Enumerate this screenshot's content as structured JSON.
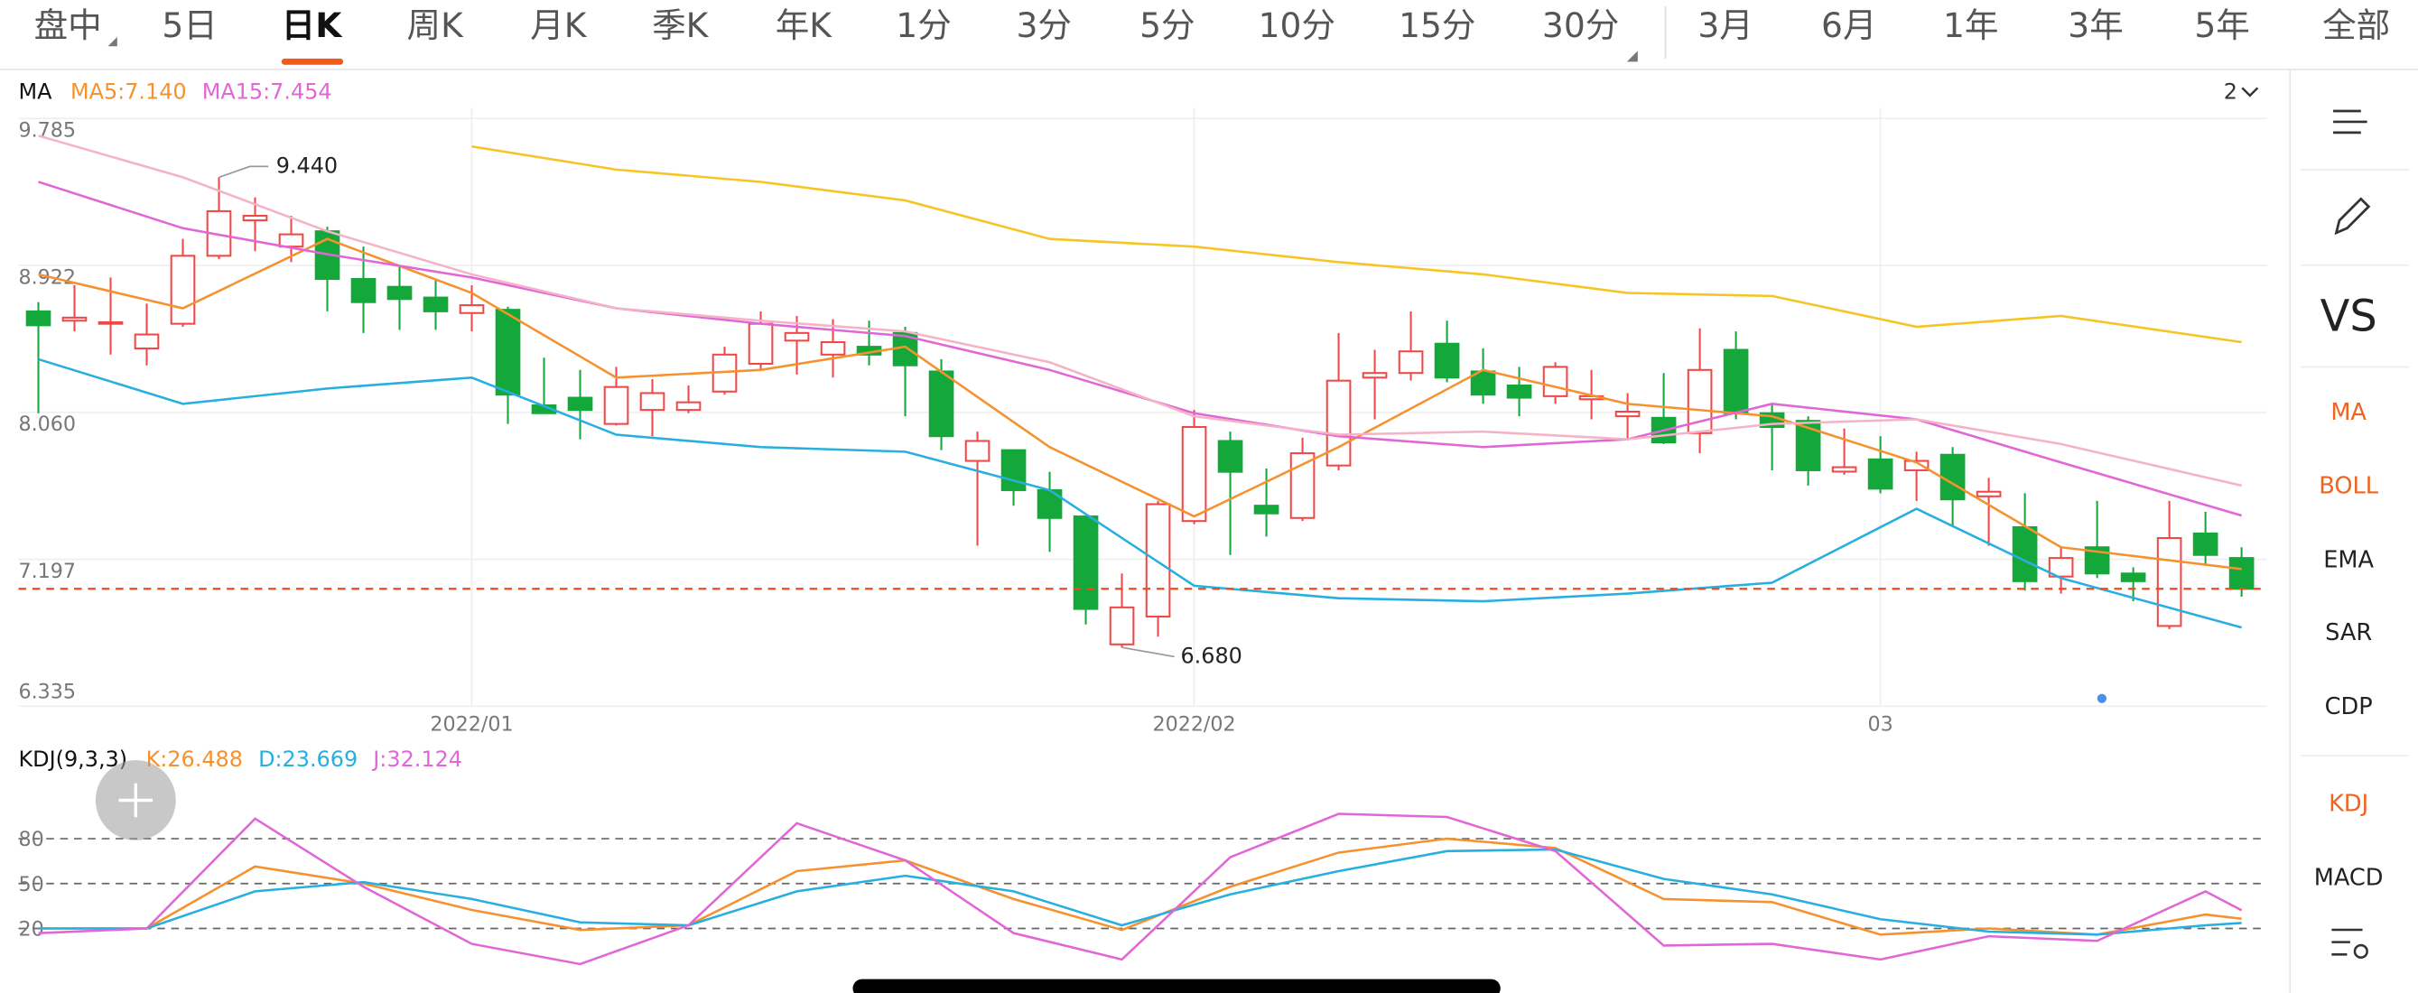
{
  "tabs": [
    "盘中",
    "5日",
    "日K",
    "周K",
    "月K",
    "季K",
    "年K",
    "1分",
    "3分",
    "5分",
    "10分",
    "15分",
    "30分",
    "3月",
    "6月",
    "1年",
    "3年",
    "5年",
    "全部"
  ],
  "selected_tab": 2,
  "sidebar": [
    {
      "label": "VS"
    },
    {
      "label": "MA",
      "active": true
    },
    {
      "label": "BOLL",
      "active": true
    },
    {
      "label": "EMA"
    },
    {
      "label": "SAR"
    },
    {
      "label": "CDP"
    },
    {
      "label": "KDJ",
      "active": true
    },
    {
      "label": "MACD"
    }
  ],
  "chart_data": [
    {
      "type": "candlestick",
      "indicator": "MA",
      "corner_label": "2",
      "up_color": "#f04848",
      "down_color": "#14a83b",
      "open": [
        8.653,
        8.598,
        8.58,
        8.435,
        8.58,
        8.979,
        9.187,
        9.033,
        9.123,
        8.843,
        8.797,
        8.734,
        8.643,
        8.662,
        8.101,
        8.146,
        7.992,
        8.074,
        8.074,
        8.182,
        8.345,
        8.481,
        8.399,
        8.445,
        8.526,
        8.3,
        7.775,
        7.838,
        7.603,
        7.449,
        6.698,
        6.861,
        7.422,
        7.892,
        7.512,
        7.44,
        7.748,
        8.264,
        8.291,
        8.463,
        8.3,
        8.218,
        8.155,
        8.137,
        8.037,
        8.028,
        7.938,
        8.427,
        8.055,
        8.01,
        7.712,
        7.784,
        7.72,
        7.811,
        7.567,
        7.386,
        7.096,
        7.268,
        7.114,
        6.806,
        7.349,
        7.205
      ],
      "high": [
        8.707,
        8.806,
        8.852,
        8.698,
        9.078,
        9.44,
        9.322,
        9.214,
        9.15,
        9.033,
        8.924,
        8.834,
        8.806,
        8.68,
        8.381,
        8.309,
        8.327,
        8.255,
        8.218,
        8.445,
        8.653,
        8.625,
        8.607,
        8.598,
        8.562,
        8.372,
        7.947,
        7.838,
        7.711,
        7.449,
        7.114,
        7.54,
        8.074,
        7.947,
        7.73,
        7.911,
        8.526,
        8.427,
        8.653,
        8.598,
        8.436,
        8.327,
        8.354,
        8.309,
        8.173,
        8.291,
        8.553,
        8.535,
        8.11,
        8.037,
        7.965,
        7.92,
        7.829,
        7.856,
        7.675,
        7.585,
        7.268,
        7.54,
        7.15,
        7.54,
        7.476,
        7.268
      ],
      "low": [
        8.055,
        8.535,
        8.399,
        8.336,
        8.562,
        8.96,
        9.006,
        8.942,
        8.653,
        8.526,
        8.544,
        8.544,
        8.535,
        7.992,
        8.055,
        7.902,
        7.983,
        7.92,
        8.055,
        8.164,
        8.309,
        8.282,
        8.264,
        8.336,
        8.037,
        7.838,
        7.277,
        7.512,
        7.241,
        6.815,
        6.68,
        6.743,
        7.404,
        7.223,
        7.331,
        7.422,
        7.72,
        8.019,
        8.246,
        8.237,
        8.11,
        8.037,
        8.11,
        8.019,
        7.902,
        7.874,
        7.82,
        8.019,
        7.72,
        7.63,
        7.694,
        7.585,
        7.54,
        7.386,
        7.277,
        7.014,
        6.996,
        7.087,
        6.951,
        6.788,
        7.159,
        6.978
      ],
      "close": [
        8.571,
        8.616,
        8.589,
        8.517,
        8.979,
        9.241,
        9.214,
        9.105,
        8.843,
        8.707,
        8.725,
        8.653,
        8.689,
        8.164,
        8.055,
        8.074,
        8.209,
        8.173,
        8.119,
        8.399,
        8.58,
        8.526,
        8.472,
        8.399,
        8.336,
        7.92,
        7.892,
        7.603,
        7.44,
        6.906,
        6.915,
        7.521,
        7.974,
        7.711,
        7.467,
        7.82,
        8.246,
        8.291,
        8.418,
        8.264,
        8.164,
        8.146,
        8.327,
        8.155,
        8.064,
        7.884,
        8.309,
        8.055,
        7.974,
        7.72,
        7.738,
        7.612,
        7.775,
        7.549,
        7.594,
        7.069,
        7.205,
        7.114,
        7.069,
        7.322,
        7.223,
        7.024
      ],
      "series": [
        {
          "name": "MA5:7.140",
          "color": "#f5922f",
          "x": [
            0,
            4,
            8,
            12,
            16,
            20,
            24,
            28,
            32,
            36,
            40,
            44,
            48,
            52,
            56,
            61
          ],
          "values": [
            8.87,
            8.671,
            9.078,
            8.761,
            8.264,
            8.309,
            8.445,
            7.856,
            7.449,
            7.856,
            8.309,
            8.11,
            8.037,
            7.766,
            7.268,
            7.14
          ]
        },
        {
          "name": "MA15:7.454",
          "color": "#e166d6",
          "x": [
            0,
            4,
            8,
            12,
            16,
            20,
            24,
            28,
            32,
            36,
            40,
            44,
            48,
            52,
            56,
            61
          ],
          "values": [
            9.413,
            9.141,
            8.988,
            8.852,
            8.671,
            8.58,
            8.508,
            8.309,
            8.055,
            7.92,
            7.856,
            7.902,
            8.11,
            8.019,
            7.766,
            7.454
          ]
        },
        {
          "color": "#f5b3c8",
          "x": [
            0,
            4,
            8,
            12,
            16,
            20,
            24,
            28,
            32,
            36,
            40,
            44,
            48,
            52,
            56,
            61
          ],
          "values": [
            9.684,
            9.44,
            9.123,
            8.87,
            8.671,
            8.598,
            8.535,
            8.354,
            8.037,
            7.929,
            7.947,
            7.902,
            7.992,
            8.019,
            7.874,
            7.63
          ]
        },
        {
          "color": "#f6c525",
          "x": [
            0,
            4,
            8,
            12,
            16,
            20,
            24,
            28,
            32,
            36,
            40,
            44,
            48,
            52,
            56,
            61
          ],
          "values": [
            null,
            null,
            null,
            9.621,
            9.485,
            9.413,
            9.304,
            9.078,
            9.033,
            8.942,
            8.87,
            8.761,
            8.743,
            8.562,
            8.626,
            8.472
          ]
        },
        {
          "color": "#27afe0",
          "x": [
            0,
            4,
            8,
            12,
            16,
            20,
            24,
            28,
            32,
            36,
            40,
            44,
            48,
            52,
            56,
            61
          ],
          "values": [
            8.372,
            8.11,
            8.2,
            8.264,
            7.929,
            7.856,
            7.829,
            7.603,
            7.042,
            6.969,
            6.951,
            6.996,
            7.06,
            7.494,
            7.087,
            6.797
          ]
        }
      ],
      "max_label": "9.440",
      "min_label": "6.680",
      "price_line": 7.024,
      "price_line_color": "#f04a1a",
      "xlim": [
        -0.55,
        61.7
      ],
      "ylim": [
        6.335,
        9.847
      ],
      "yticks": [
        9.785,
        8.922,
        {
          "value": 8.06,
          "label": "8.060"
        },
        7.197,
        6.335
      ],
      "xticks": [
        {
          "value": 12,
          "label": "2022/01"
        },
        {
          "value": 32,
          "label": "2022/02"
        },
        {
          "value": 51,
          "label": "03"
        }
      ],
      "grid": true
    },
    {
      "type": "line",
      "indicator": "KDJ(9,3,3)",
      "series": [
        {
          "name": "K:26.488",
          "color": "#f5922f",
          "x": [
            0,
            3,
            6,
            9,
            12,
            15,
            18,
            21,
            24,
            27,
            30,
            33,
            36,
            39,
            42,
            45,
            48,
            51,
            54,
            57,
            60,
            61
          ],
          "values": [
            20.0,
            20.0,
            61.4,
            50.0,
            32.4,
            19.0,
            22.1,
            58.3,
            65.5,
            39.7,
            19.0,
            47.9,
            70.7,
            80.0,
            73.8,
            39.7,
            37.6,
            15.9,
            20.0,
            15.9,
            29.3,
            26.488
          ]
        },
        {
          "name": "D:23.669",
          "color": "#27afe0",
          "x": [
            0,
            3,
            6,
            9,
            12,
            15,
            18,
            21,
            24,
            27,
            30,
            33,
            36,
            39,
            42,
            45,
            48,
            51,
            54,
            57,
            60,
            61
          ],
          "values": [
            20.0,
            20.0,
            44.8,
            51.0,
            39.7,
            24.1,
            22.1,
            44.8,
            55.2,
            44.8,
            22.1,
            42.8,
            58.3,
            71.7,
            72.8,
            53.1,
            42.8,
            26.2,
            17.9,
            15.9,
            22.1,
            23.669
          ]
        },
        {
          "name": "J:32.124",
          "color": "#e166d6",
          "x": [
            0,
            3,
            6,
            9,
            12,
            15,
            18,
            21,
            24,
            27,
            30,
            33,
            36,
            39,
            42,
            45,
            48,
            51,
            54,
            57,
            60,
            61
          ],
          "values": [
            16.9,
            20.0,
            93.4,
            47.9,
            9.7,
            -3.8,
            22.1,
            90.3,
            65.5,
            16.9,
            -0.7,
            67.6,
            96.6,
            94.5,
            71.7,
            8.6,
            9.7,
            -0.7,
            14.8,
            11.7,
            44.8,
            32.124
          ]
        }
      ],
      "xlim": [
        -0.55,
        61.7
      ],
      "ylim": [
        -19,
        117
      ],
      "yticks": [
        80,
        50,
        20
      ],
      "grid": "dashed"
    }
  ]
}
